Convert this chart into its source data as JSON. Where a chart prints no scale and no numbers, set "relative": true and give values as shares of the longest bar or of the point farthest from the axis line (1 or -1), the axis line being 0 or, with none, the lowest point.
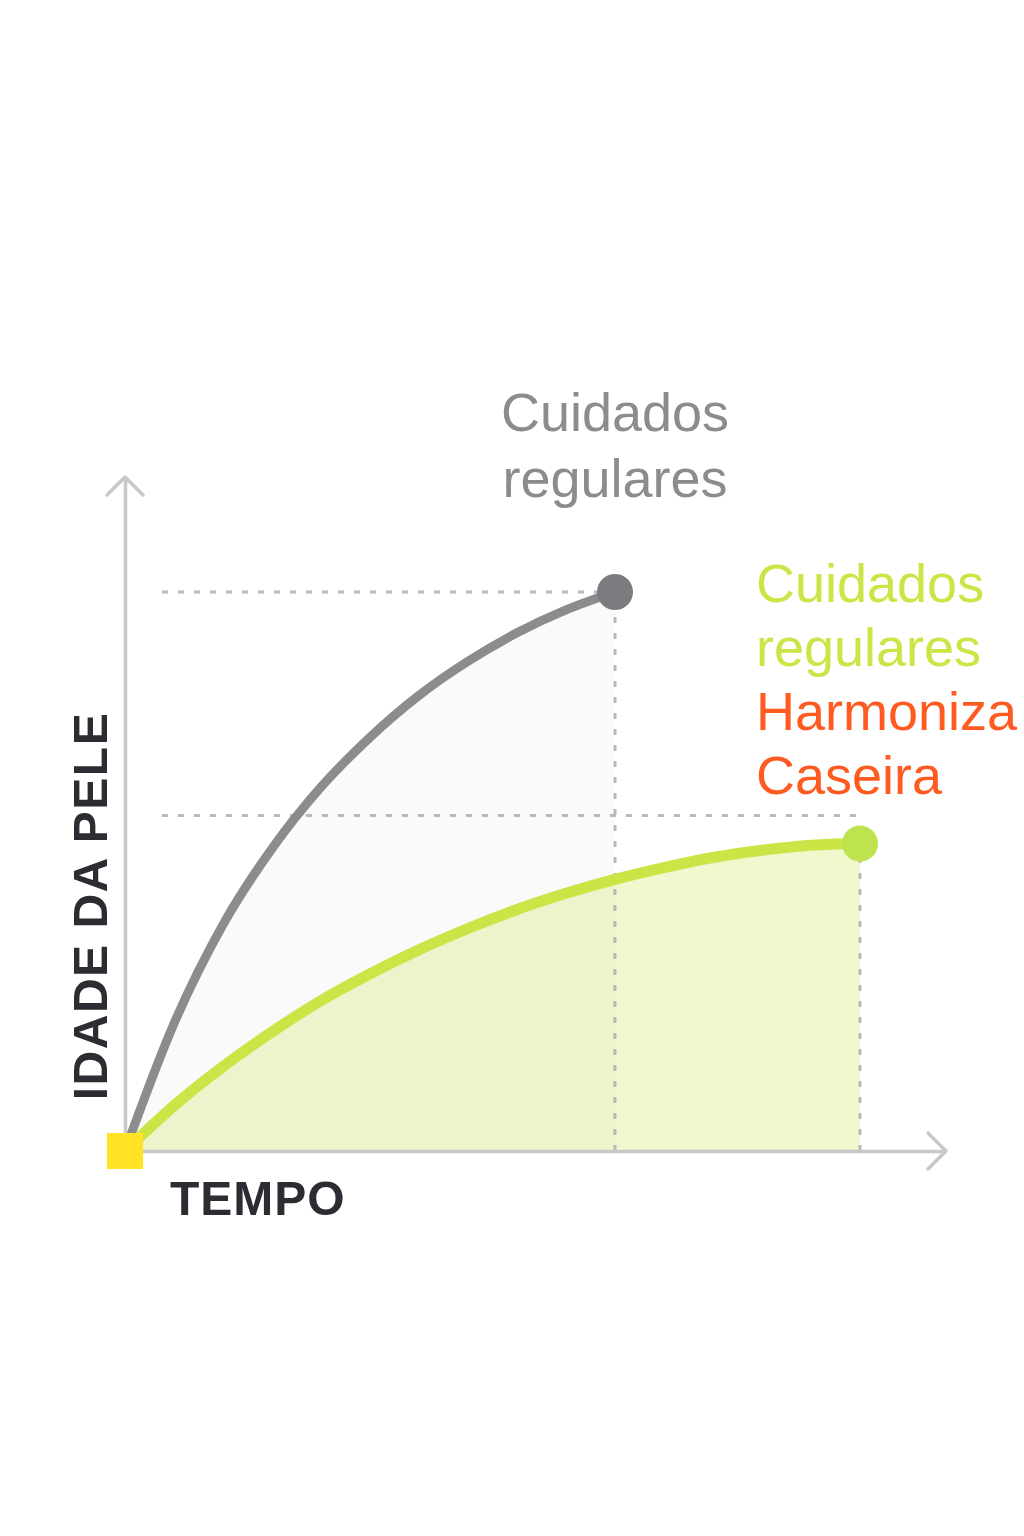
{
  "chart_data": {
    "type": "area",
    "relative": true,
    "xlabel": "TEMPO",
    "ylabel": "IDADE DA PELE",
    "categories": [
      null,
      null,
      null,
      null,
      null,
      null,
      null,
      null,
      null,
      null,
      null,
      null,
      null,
      null,
      null,
      null
    ],
    "series": [
      {
        "name": "Cuidados regulares",
        "color": "#8c8c8e",
        "values": [
          0,
          0.228,
          0.405,
          0.541,
          0.651,
          0.74,
          0.815,
          0.876,
          0.927,
          0.968,
          1,
          null,
          null,
          null,
          null,
          null
        ]
      },
      {
        "name": "Cuidados regulares",
        "color": "#c9e646",
        "values": [
          0,
          0.081,
          0.151,
          0.213,
          0.269,
          0.317,
          0.36,
          0.398,
          0.432,
          0.461,
          0.486,
          0.507,
          0.525,
          0.538,
          0.547,
          0.55
        ]
      },
      {
        "type": "line",
        "color": "#7a7c80",
        "marker": "circle",
        "values": [
          null,
          null,
          null,
          null,
          null,
          null,
          null,
          null,
          null,
          null,
          1,
          null,
          null,
          null,
          null,
          null
        ]
      },
      {
        "type": "line",
        "color": "#bfe34f",
        "marker": "circle",
        "values": [
          null,
          null,
          null,
          null,
          null,
          null,
          null,
          null,
          null,
          null,
          null,
          null,
          null,
          null,
          null,
          0.55
        ]
      },
      {
        "type": "line",
        "color": "#ffe324",
        "marker": "square",
        "values": [
          0,
          null,
          null,
          null,
          null,
          null,
          null,
          null,
          null,
          null,
          null,
          null,
          null,
          null,
          null,
          null
        ]
      }
    ],
    "ref_lines": [
      {
        "axis": "y",
        "value": 1,
        "line_style": "dotted",
        "color": "#b9b9b9"
      },
      {
        "axis": "y",
        "value": 0.6,
        "line_style": "dotted",
        "color": "#b9b9b9"
      }
    ],
    "annotations": [
      "Harmoniza Caseira"
    ]
  }
}
